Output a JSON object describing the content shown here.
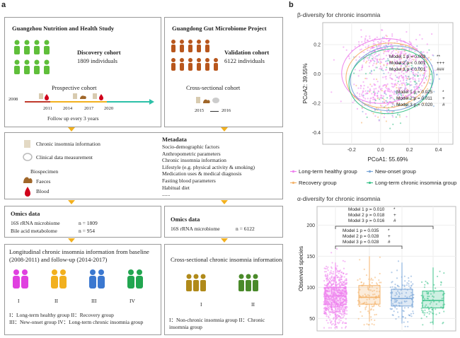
{
  "panel_a": {
    "letter": "a",
    "gnhs": {
      "title": "Guangzhou Nutrition and Health Study",
      "cohort_title": "Discovery cohort",
      "cohort_count": "1809 individuals",
      "design": "Prospective cohort",
      "years": [
        "2008",
        "2011",
        "2014",
        "2017",
        "2020"
      ],
      "follow_up": "Follow up every 3 years"
    },
    "ggmp": {
      "title": "Guangdong Gut Microbiome Project",
      "cohort_title": "Validation cohort",
      "cohort_count": "6122 individuals",
      "design": "Cross-sectional cohort",
      "years": [
        "2015",
        "2016"
      ]
    },
    "collection": {
      "items": [
        "Chronic insomnia information",
        "Clinical data measurement",
        "Biospecimen",
        "Faeces",
        "Blood"
      ],
      "metadata_title": "Metadata",
      "metadata_items": [
        "Socio-demographic factors",
        "Anthropometric parameters",
        "Chronic insomnia information",
        "Lifestyle (e.g. physical activity & smoking)",
        "Medication uses & medical diagnosis",
        "Fasting blood parameters",
        "Habitual diet",
        "......"
      ]
    },
    "omics_left": {
      "title": "Omics data",
      "rows": [
        {
          "name": "16S rRNA microbiome",
          "n": "n = 1809"
        },
        {
          "name": "Bile acid metabolome",
          "n": "n = 954"
        }
      ]
    },
    "omics_right": {
      "title": "Omics data",
      "rows": [
        {
          "name": "16S rRNA microbiome",
          "n": "n = 6122"
        }
      ]
    },
    "longitudinal": {
      "title": "Longitudinal chronic insomnia information from baseline (2008-2011) and follow-up (2014-2017)",
      "groups": [
        "I",
        "II",
        "III",
        "IV"
      ],
      "legend_1": "I：Long-term healthy group   II：Recovery group",
      "legend_2": "III：New-onset group   IV：Long-term chronic insomnia group"
    },
    "cross_sectional": {
      "title": "Cross-sectional chronic insomnia information",
      "groups": [
        "I",
        "II"
      ],
      "legend": "I：Non-chronic insomnia group   II：Chronic insomnia group"
    }
  },
  "panel_b": {
    "letter": "b",
    "colors": {
      "healthy": "#ee82ee",
      "recovery": "#f4b36b",
      "new_onset": "#7aa6d8",
      "chronic": "#3cc38a"
    },
    "legend": [
      {
        "key": "healthy",
        "label": "Long-term healthy group"
      },
      {
        "key": "new_onset",
        "label": "New-onset group"
      },
      {
        "key": "recovery",
        "label": "Recovery group"
      },
      {
        "key": "chronic",
        "label": "Long-term chronic insomnia group"
      }
    ]
  },
  "chart_data": [
    {
      "type": "scatter",
      "title": "β-diversity for chronic insomnia",
      "xlabel": "PCoA1: 55.69%",
      "ylabel": "PCoA2: 39.55%",
      "xlim": [
        -0.4,
        0.5
      ],
      "ylim": [
        -0.48,
        0.35
      ],
      "xticks": [
        "-0.2",
        "0.0",
        "0.2",
        "0.4"
      ],
      "yticks": [
        "0.2",
        "0.0",
        "-0.2",
        "-0.4"
      ],
      "grid": true,
      "annotations_top": [
        {
          "label": "Model 1",
          "p": "p = 0.003",
          "sig": "**"
        },
        {
          "label": "Model 2",
          "p": "p < 0.001",
          "sig": "+++"
        },
        {
          "label": "Model 3",
          "p": "p < 0.001",
          "sig": "###"
        }
      ],
      "annotations_mid": [
        {
          "label": "Model 1",
          "p": "p = 0.025",
          "sig": "*"
        },
        {
          "label": "Model 2",
          "p": "p = 0.011",
          "sig": "+"
        },
        {
          "label": "Model 3",
          "p": "p = 0.020",
          "sig": "#"
        }
      ],
      "centroids": [
        {
          "key": "healthy",
          "x": 0.02,
          "y": 0.02
        },
        {
          "key": "recovery",
          "x": 0.05,
          "y": -0.01
        },
        {
          "key": "new_onset",
          "x": 0.08,
          "y": -0.03
        },
        {
          "key": "chronic",
          "x": 0.07,
          "y": -0.05
        }
      ]
    },
    {
      "type": "box",
      "title": "α-diversity for chronic insomnia",
      "ylabel": "Observed species",
      "ylim": [
        30,
        230
      ],
      "yticks": [
        "50",
        "100",
        "150",
        "200"
      ],
      "grid": true,
      "categories": [
        "Long-term healthy group",
        "Recovery group",
        "New-onset group",
        "Long-term chronic insomnia group"
      ],
      "series": [
        {
          "key": "healthy",
          "min": 40,
          "q1": 72,
          "median": 86,
          "q3": 100,
          "max": 140
        },
        {
          "key": "recovery",
          "min": 45,
          "q1": 73,
          "median": 84,
          "q3": 103,
          "max": 150
        },
        {
          "key": "new_onset",
          "min": 42,
          "q1": 70,
          "median": 82,
          "q3": 97,
          "max": 140
        },
        {
          "key": "chronic",
          "min": 40,
          "q1": 67,
          "median": 79,
          "q3": 94,
          "max": 132
        }
      ],
      "annotations_outer": [
        {
          "label": "Model 1",
          "p": "p = 0.010",
          "sig": "*"
        },
        {
          "label": "Model 2",
          "p": "p = 0.018",
          "sig": "+"
        },
        {
          "label": "Model 3",
          "p": "p = 0.016",
          "sig": "#"
        }
      ],
      "annotations_inner": [
        {
          "label": "Model 1",
          "p": "p = 0.035",
          "sig": "*"
        },
        {
          "label": "Model 2",
          "p": "p = 0.028",
          "sig": "+"
        },
        {
          "label": "Model 3",
          "p": "p = 0.028",
          "sig": "#"
        }
      ]
    }
  ]
}
